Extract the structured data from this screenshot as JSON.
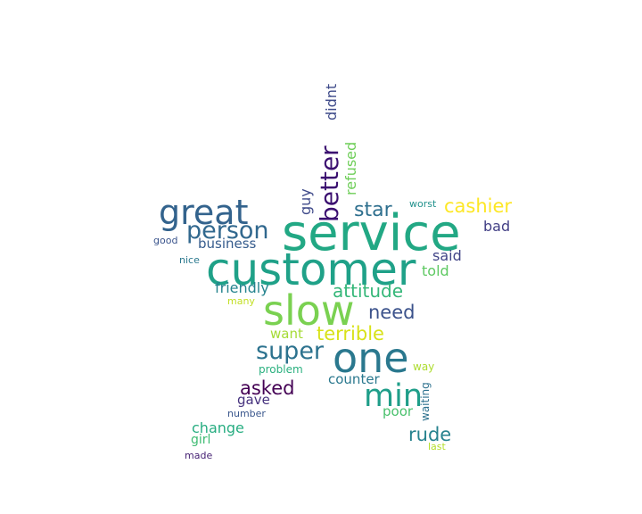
{
  "word_cloud": {
    "words": [
      {
        "text": "service",
        "color": "#22a884"
      },
      {
        "text": "customer",
        "color": "#1fa188"
      },
      {
        "text": "great",
        "color": "#33638d"
      },
      {
        "text": "slow",
        "color": "#7ad151"
      },
      {
        "text": "one",
        "color": "#2a788e"
      },
      {
        "text": "better",
        "color": "#3b0f70"
      },
      {
        "text": "person",
        "color": "#31688e"
      },
      {
        "text": "min",
        "color": "#1f9e89"
      },
      {
        "text": "super",
        "color": "#2c728e"
      },
      {
        "text": "cashier",
        "color": "#fde725"
      },
      {
        "text": "star",
        "color": "#2e6f8e"
      },
      {
        "text": "attitude",
        "color": "#35b779"
      },
      {
        "text": "need",
        "color": "#3b528b"
      },
      {
        "text": "terrible",
        "color": "#d8e219"
      },
      {
        "text": "asked",
        "color": "#440154"
      },
      {
        "text": "rude",
        "color": "#26828e"
      },
      {
        "text": "business",
        "color": "#365c8d"
      },
      {
        "text": "friendly",
        "color": "#25838e"
      },
      {
        "text": "didnt",
        "color": "#3e4a89"
      },
      {
        "text": "refused",
        "color": "#6ece58"
      },
      {
        "text": "guy",
        "color": "#3e4989"
      },
      {
        "text": "said",
        "color": "#414487"
      },
      {
        "text": "told",
        "color": "#5ec962"
      },
      {
        "text": "bad",
        "color": "#423f85"
      },
      {
        "text": "want",
        "color": "#a5db36"
      },
      {
        "text": "counter",
        "color": "#2a788e"
      },
      {
        "text": "gave",
        "color": "#46327e"
      },
      {
        "text": "change",
        "color": "#27ad81"
      },
      {
        "text": "girl",
        "color": "#3fbc73"
      },
      {
        "text": "poor",
        "color": "#4ac16d"
      },
      {
        "text": "waiting",
        "color": "#2d718e"
      },
      {
        "text": "problem",
        "color": "#2ab07f"
      },
      {
        "text": "way",
        "color": "#addc30"
      },
      {
        "text": "number",
        "color": "#39568c"
      },
      {
        "text": "made",
        "color": "#482475"
      },
      {
        "text": "last",
        "color": "#b5de2b"
      },
      {
        "text": "good",
        "color": "#3a548c"
      },
      {
        "text": "nice",
        "color": "#2a788e"
      },
      {
        "text": "many",
        "color": "#c2df23"
      },
      {
        "text": "worst",
        "color": "#21918c"
      }
    ]
  }
}
